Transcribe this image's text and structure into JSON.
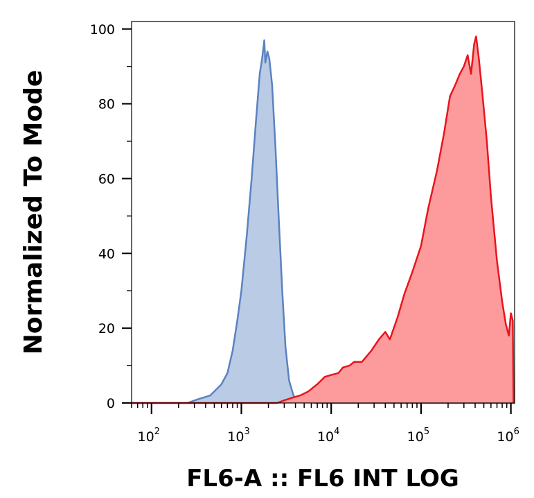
{
  "chart_data": {
    "type": "area",
    "title": "",
    "xlabel": "FL6-A :: FL6 INT LOG",
    "ylabel": "Normalized To Mode",
    "xscale": "log",
    "xlim": [
      60,
      1100000
    ],
    "ylim": [
      0,
      102
    ],
    "grid": false,
    "legend": "none",
    "yticks": [
      {
        "value": 0,
        "label": "0"
      },
      {
        "value": 20,
        "label": "20"
      },
      {
        "value": 40,
        "label": "40"
      },
      {
        "value": 60,
        "label": "60"
      },
      {
        "value": 80,
        "label": "80"
      },
      {
        "value": 100,
        "label": "100"
      }
    ],
    "xticks": [
      {
        "value": 100,
        "base": "10",
        "exp": "2"
      },
      {
        "value": 1000,
        "base": "10",
        "exp": "3"
      },
      {
        "value": 10000,
        "base": "10",
        "exp": "4"
      },
      {
        "value": 100000,
        "base": "10",
        "exp": "5"
      },
      {
        "value": 1000000,
        "base": "10",
        "exp": "6"
      }
    ],
    "series": [
      {
        "color": "#5b82c0",
        "fill": "#b9cbe5",
        "points": [
          [
            60,
            0
          ],
          [
            250,
            0
          ],
          [
            330,
            1
          ],
          [
            450,
            2
          ],
          [
            600,
            5
          ],
          [
            700,
            8
          ],
          [
            800,
            14
          ],
          [
            900,
            22
          ],
          [
            1000,
            30
          ],
          [
            1150,
            45
          ],
          [
            1300,
            60
          ],
          [
            1450,
            75
          ],
          [
            1600,
            88
          ],
          [
            1700,
            92
          ],
          [
            1800,
            97
          ],
          [
            1850,
            91
          ],
          [
            1950,
            94
          ],
          [
            2050,
            92
          ],
          [
            2200,
            85
          ],
          [
            2400,
            68
          ],
          [
            2600,
            50
          ],
          [
            2850,
            30
          ],
          [
            3100,
            15
          ],
          [
            3400,
            6
          ],
          [
            3800,
            2
          ],
          [
            4200,
            0.8
          ],
          [
            5000,
            0.3
          ],
          [
            7000,
            0
          ],
          [
            1100000,
            0
          ]
        ]
      },
      {
        "color": "#e8141e",
        "fill": "#fd9a9b",
        "points": [
          [
            60,
            0
          ],
          [
            2500,
            0
          ],
          [
            3000,
            0.7
          ],
          [
            3800,
            1.5
          ],
          [
            4500,
            2
          ],
          [
            5500,
            3
          ],
          [
            7000,
            5
          ],
          [
            8500,
            7
          ],
          [
            10000,
            7.5
          ],
          [
            12000,
            8
          ],
          [
            13500,
            9.5
          ],
          [
            16000,
            10
          ],
          [
            18000,
            11
          ],
          [
            22000,
            11
          ],
          [
            28000,
            14
          ],
          [
            34000,
            17
          ],
          [
            40000,
            19
          ],
          [
            45000,
            17
          ],
          [
            55000,
            23
          ],
          [
            65000,
            29
          ],
          [
            80000,
            35
          ],
          [
            100000,
            42
          ],
          [
            120000,
            52
          ],
          [
            150000,
            62
          ],
          [
            180000,
            72
          ],
          [
            210000,
            82
          ],
          [
            240000,
            85
          ],
          [
            270000,
            88
          ],
          [
            300000,
            90
          ],
          [
            330000,
            93
          ],
          [
            360000,
            88
          ],
          [
            390000,
            96
          ],
          [
            410000,
            98
          ],
          [
            440000,
            92
          ],
          [
            480000,
            83
          ],
          [
            540000,
            70
          ],
          [
            600000,
            55
          ],
          [
            700000,
            38
          ],
          [
            800000,
            27
          ],
          [
            880000,
            21
          ],
          [
            950000,
            18
          ],
          [
            1000000,
            24
          ],
          [
            1050000,
            22
          ],
          [
            1070000,
            0
          ],
          [
            1100000,
            0
          ]
        ]
      }
    ]
  }
}
